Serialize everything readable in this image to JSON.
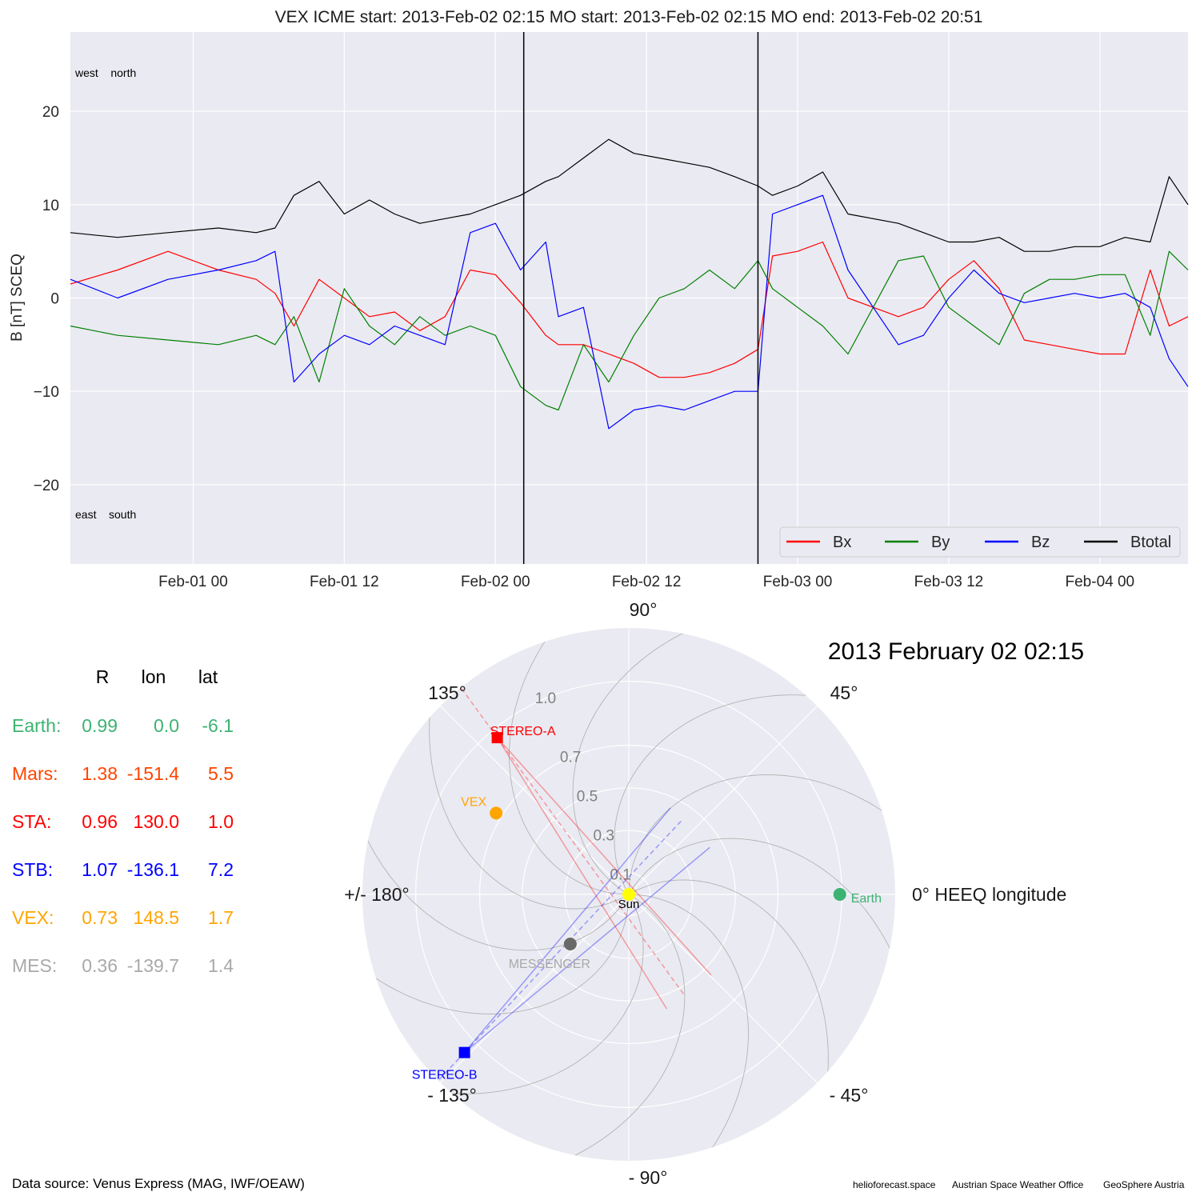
{
  "header": {
    "title": "VEX    ICME start: 2013-Feb-02 02:15   MO start: 2013-Feb-02 02:15   MO end: 2013-Feb-02 20:51"
  },
  "chart_data": [
    {
      "type": "line",
      "title": "VEX    ICME start: 2013-Feb-02 02:15   MO start: 2013-Feb-02 02:15   MO end: 2013-Feb-02 20:51",
      "ylabel": "B [nT] SCEQ",
      "xlabel": "",
      "x_range": [
        "2013-01-31T14:15",
        "2013-02-04T07:00"
      ],
      "ylim": [
        -28.5,
        28.5
      ],
      "yticks": [
        -20,
        -10,
        0,
        10,
        20
      ],
      "ytick_labels": [
        "−20",
        "−10",
        "0",
        "10",
        "20"
      ],
      "xticks": [
        "2013-02-01T00:00",
        "2013-02-01T12:00",
        "2013-02-02T00:00",
        "2013-02-02T12:00",
        "2013-02-03T00:00",
        "2013-02-03T12:00",
        "2013-02-04T00:00"
      ],
      "xtick_labels": [
        "Feb-01 00",
        "Feb-01 12",
        "Feb-02 00",
        "Feb-02 12",
        "Feb-03 00",
        "Feb-03 12",
        "Feb-04 00"
      ],
      "grid": true,
      "legend_position": "bottom-right",
      "corner_labels": {
        "top": "west    north",
        "bottom": "east    south"
      },
      "vertical_lines": [
        "2013-02-02T02:15",
        "2013-02-02T20:51"
      ],
      "colors": {
        "Bx": "#ff0000",
        "By": "#008000",
        "Bz": "#0000ff",
        "Btotal": "#000000"
      },
      "series": [
        {
          "name": "Bx",
          "points": [
            [
              "2013-01-31T14:15",
              1.5
            ],
            [
              "2013-01-31T18:00",
              3.0
            ],
            [
              "2013-01-31T22:00",
              5.0
            ],
            [
              "2013-02-01T02:00",
              3.0
            ],
            [
              "2013-02-01T05:00",
              2.0
            ],
            [
              "2013-02-01T06:30",
              0.5
            ],
            [
              "2013-02-01T08:00",
              -3.0
            ],
            [
              "2013-02-01T10:00",
              2.0
            ],
            [
              "2013-02-01T12:00",
              0.0
            ],
            [
              "2013-02-01T14:00",
              -2.0
            ],
            [
              "2013-02-01T16:00",
              -1.5
            ],
            [
              "2013-02-01T18:00",
              -3.5
            ],
            [
              "2013-02-01T20:00",
              -2.0
            ],
            [
              "2013-02-01T22:00",
              3.0
            ],
            [
              "2013-02-02T00:00",
              2.5
            ],
            [
              "2013-02-02T02:00",
              -0.5
            ],
            [
              "2013-02-02T04:00",
              -4.0
            ],
            [
              "2013-02-02T05:00",
              -5.0
            ],
            [
              "2013-02-02T07:00",
              -5.0
            ],
            [
              "2013-02-02T09:00",
              -6.0
            ],
            [
              "2013-02-02T11:00",
              -7.0
            ],
            [
              "2013-02-02T13:00",
              -8.5
            ],
            [
              "2013-02-02T15:00",
              -8.5
            ],
            [
              "2013-02-02T17:00",
              -8.0
            ],
            [
              "2013-02-02T19:00",
              -7.0
            ],
            [
              "2013-02-02T20:51",
              -5.5
            ],
            [
              "2013-02-02T22:00",
              4.5
            ],
            [
              "2013-02-03T00:00",
              5.0
            ],
            [
              "2013-02-03T02:00",
              6.0
            ],
            [
              "2013-02-03T04:00",
              0.0
            ],
            [
              "2013-02-03T08:00",
              -2.0
            ],
            [
              "2013-02-03T10:00",
              -1.0
            ],
            [
              "2013-02-03T12:00",
              2.0
            ],
            [
              "2013-02-03T14:00",
              4.0
            ],
            [
              "2013-02-03T16:00",
              1.0
            ],
            [
              "2013-02-03T18:00",
              -4.5
            ],
            [
              "2013-02-03T20:00",
              -5.0
            ],
            [
              "2013-02-03T22:00",
              -5.5
            ],
            [
              "2013-02-04T00:00",
              -6.0
            ],
            [
              "2013-02-04T02:00",
              -6.0
            ],
            [
              "2013-02-04T04:00",
              3.0
            ],
            [
              "2013-02-04T05:30",
              -3.0
            ],
            [
              "2013-02-04T07:00",
              -2.0
            ]
          ]
        },
        {
          "name": "By",
          "points": [
            [
              "2013-01-31T14:15",
              -3.0
            ],
            [
              "2013-01-31T18:00",
              -4.0
            ],
            [
              "2013-01-31T22:00",
              -4.5
            ],
            [
              "2013-02-01T02:00",
              -5.0
            ],
            [
              "2013-02-01T05:00",
              -4.0
            ],
            [
              "2013-02-01T06:30",
              -5.0
            ],
            [
              "2013-02-01T08:00",
              -2.0
            ],
            [
              "2013-02-01T10:00",
              -9.0
            ],
            [
              "2013-02-01T12:00",
              1.0
            ],
            [
              "2013-02-01T14:00",
              -3.0
            ],
            [
              "2013-02-01T16:00",
              -5.0
            ],
            [
              "2013-02-01T18:00",
              -2.0
            ],
            [
              "2013-02-01T20:00",
              -4.0
            ],
            [
              "2013-02-01T22:00",
              -3.0
            ],
            [
              "2013-02-02T00:00",
              -4.0
            ],
            [
              "2013-02-02T02:00",
              -9.5
            ],
            [
              "2013-02-02T04:00",
              -11.5
            ],
            [
              "2013-02-02T05:00",
              -12.0
            ],
            [
              "2013-02-02T07:00",
              -5.0
            ],
            [
              "2013-02-02T09:00",
              -9.0
            ],
            [
              "2013-02-02T11:00",
              -4.0
            ],
            [
              "2013-02-02T13:00",
              0.0
            ],
            [
              "2013-02-02T15:00",
              1.0
            ],
            [
              "2013-02-02T17:00",
              3.0
            ],
            [
              "2013-02-02T19:00",
              1.0
            ],
            [
              "2013-02-02T20:51",
              4.0
            ],
            [
              "2013-02-02T22:00",
              1.0
            ],
            [
              "2013-02-03T00:00",
              -1.0
            ],
            [
              "2013-02-03T02:00",
              -3.0
            ],
            [
              "2013-02-03T04:00",
              -6.0
            ],
            [
              "2013-02-03T08:00",
              4.0
            ],
            [
              "2013-02-03T10:00",
              4.5
            ],
            [
              "2013-02-03T12:00",
              -1.0
            ],
            [
              "2013-02-03T14:00",
              -3.0
            ],
            [
              "2013-02-03T16:00",
              -5.0
            ],
            [
              "2013-02-03T18:00",
              0.5
            ],
            [
              "2013-02-03T20:00",
              2.0
            ],
            [
              "2013-02-03T22:00",
              2.0
            ],
            [
              "2013-02-04T00:00",
              2.5
            ],
            [
              "2013-02-04T02:00",
              2.5
            ],
            [
              "2013-02-04T04:00",
              -4.0
            ],
            [
              "2013-02-04T05:30",
              5.0
            ],
            [
              "2013-02-04T07:00",
              3.0
            ]
          ]
        },
        {
          "name": "Bz",
          "points": [
            [
              "2013-01-31T14:15",
              2.0
            ],
            [
              "2013-01-31T18:00",
              0.0
            ],
            [
              "2013-01-31T22:00",
              2.0
            ],
            [
              "2013-02-01T02:00",
              3.0
            ],
            [
              "2013-02-01T05:00",
              4.0
            ],
            [
              "2013-02-01T06:30",
              5.0
            ],
            [
              "2013-02-01T08:00",
              -9.0
            ],
            [
              "2013-02-01T10:00",
              -6.0
            ],
            [
              "2013-02-01T12:00",
              -4.0
            ],
            [
              "2013-02-01T14:00",
              -5.0
            ],
            [
              "2013-02-01T16:00",
              -3.0
            ],
            [
              "2013-02-01T18:00",
              -4.0
            ],
            [
              "2013-02-01T20:00",
              -5.0
            ],
            [
              "2013-02-01T22:00",
              7.0
            ],
            [
              "2013-02-02T00:00",
              8.0
            ],
            [
              "2013-02-02T02:00",
              3.0
            ],
            [
              "2013-02-02T04:00",
              6.0
            ],
            [
              "2013-02-02T05:00",
              -2.0
            ],
            [
              "2013-02-02T07:00",
              -1.0
            ],
            [
              "2013-02-02T09:00",
              -14.0
            ],
            [
              "2013-02-02T11:00",
              -12.0
            ],
            [
              "2013-02-02T13:00",
              -11.5
            ],
            [
              "2013-02-02T15:00",
              -12.0
            ],
            [
              "2013-02-02T17:00",
              -11.0
            ],
            [
              "2013-02-02T19:00",
              -10.0
            ],
            [
              "2013-02-02T20:51",
              -10.0
            ],
            [
              "2013-02-02T22:00",
              9.0
            ],
            [
              "2013-02-03T00:00",
              10.0
            ],
            [
              "2013-02-03T02:00",
              11.0
            ],
            [
              "2013-02-03T04:00",
              3.0
            ],
            [
              "2013-02-03T08:00",
              -5.0
            ],
            [
              "2013-02-03T10:00",
              -4.0
            ],
            [
              "2013-02-03T12:00",
              0.0
            ],
            [
              "2013-02-03T14:00",
              3.0
            ],
            [
              "2013-02-03T16:00",
              0.5
            ],
            [
              "2013-02-03T18:00",
              -0.5
            ],
            [
              "2013-02-03T20:00",
              0.0
            ],
            [
              "2013-02-03T22:00",
              0.5
            ],
            [
              "2013-02-04T00:00",
              0.0
            ],
            [
              "2013-02-04T02:00",
              0.5
            ],
            [
              "2013-02-04T04:00",
              -1.0
            ],
            [
              "2013-02-04T05:30",
              -6.5
            ],
            [
              "2013-02-04T07:00",
              -9.5
            ]
          ]
        },
        {
          "name": "Btotal",
          "points": [
            [
              "2013-01-31T14:15",
              7.0
            ],
            [
              "2013-01-31T18:00",
              6.5
            ],
            [
              "2013-01-31T22:00",
              7.0
            ],
            [
              "2013-02-01T02:00",
              7.5
            ],
            [
              "2013-02-01T05:00",
              7.0
            ],
            [
              "2013-02-01T06:30",
              7.5
            ],
            [
              "2013-02-01T08:00",
              11.0
            ],
            [
              "2013-02-01T10:00",
              12.5
            ],
            [
              "2013-02-01T12:00",
              9.0
            ],
            [
              "2013-02-01T14:00",
              10.5
            ],
            [
              "2013-02-01T16:00",
              9.0
            ],
            [
              "2013-02-01T18:00",
              8.0
            ],
            [
              "2013-02-01T20:00",
              8.5
            ],
            [
              "2013-02-01T22:00",
              9.0
            ],
            [
              "2013-02-02T00:00",
              10.0
            ],
            [
              "2013-02-02T02:00",
              11.0
            ],
            [
              "2013-02-02T04:00",
              12.5
            ],
            [
              "2013-02-02T05:00",
              13.0
            ],
            [
              "2013-02-02T07:00",
              15.0
            ],
            [
              "2013-02-02T09:00",
              17.0
            ],
            [
              "2013-02-02T11:00",
              15.5
            ],
            [
              "2013-02-02T13:00",
              15.0
            ],
            [
              "2013-02-02T15:00",
              14.5
            ],
            [
              "2013-02-02T17:00",
              14.0
            ],
            [
              "2013-02-02T19:00",
              13.0
            ],
            [
              "2013-02-02T20:51",
              12.0
            ],
            [
              "2013-02-02T22:00",
              11.0
            ],
            [
              "2013-02-03T00:00",
              12.0
            ],
            [
              "2013-02-03T02:00",
              13.5
            ],
            [
              "2013-02-03T04:00",
              9.0
            ],
            [
              "2013-02-03T08:00",
              8.0
            ],
            [
              "2013-02-03T10:00",
              7.0
            ],
            [
              "2013-02-03T12:00",
              6.0
            ],
            [
              "2013-02-03T14:00",
              6.0
            ],
            [
              "2013-02-03T16:00",
              6.5
            ],
            [
              "2013-02-03T18:00",
              5.0
            ],
            [
              "2013-02-03T20:00",
              5.0
            ],
            [
              "2013-02-03T22:00",
              5.5
            ],
            [
              "2013-02-04T00:00",
              5.5
            ],
            [
              "2013-02-04T02:00",
              6.5
            ],
            [
              "2013-02-04T04:00",
              6.0
            ],
            [
              "2013-02-04T05:30",
              13.0
            ],
            [
              "2013-02-04T07:00",
              10.0
            ]
          ]
        }
      ]
    },
    {
      "type": "scatter",
      "polar": true,
      "title": "2013 February 02  02:15",
      "theta_labels": {
        "0": "0° HEEQ longitude",
        "45": "45°",
        "90": "90°",
        "135": "135°",
        "180": "+/- 180°",
        "-135": "- 135°",
        "-90": "- 90°",
        "-45": "- 45°"
      },
      "r_ticks": [
        0.1,
        0.3,
        0.5,
        0.7,
        1.0
      ],
      "r_tick_labels": [
        "0.1",
        "0.3",
        "0.5",
        "0.7",
        "1.0"
      ],
      "rmax": 1.25,
      "grid": true,
      "bodies": [
        {
          "name": "Sun",
          "r": 0.0,
          "lon": 0.0,
          "color": "#ffff00",
          "marker": "circle"
        },
        {
          "name": "Earth",
          "r": 0.99,
          "lon": 0.0,
          "color": "#3cb371",
          "marker": "circle"
        },
        {
          "name": "STEREO-A",
          "r": 0.96,
          "lon": 130.0,
          "color": "#ff0000",
          "marker": "square"
        },
        {
          "name": "STEREO-B",
          "r": 1.07,
          "lon": -136.1,
          "color": "#0000ff",
          "marker": "square"
        },
        {
          "name": "VEX",
          "r": 0.73,
          "lon": 148.5,
          "color": "#ffa500",
          "marker": "circle"
        },
        {
          "name": "MESSENGER",
          "r": 0.36,
          "lon": -139.7,
          "color": "#696969",
          "marker": "circle"
        }
      ]
    }
  ],
  "positions_table": {
    "headers": [
      "R",
      "lon",
      "lat"
    ],
    "rows": [
      {
        "label": "Earth:",
        "r": "0.99",
        "lon": "0.0",
        "lat": "-6.1",
        "color": "#3cb371"
      },
      {
        "label": "Mars:",
        "r": "1.38",
        "lon": "-151.4",
        "lat": "5.5",
        "color": "#ff4500"
      },
      {
        "label": "STA:",
        "r": "0.96",
        "lon": "130.0",
        "lat": "1.0",
        "color": "#ff0000"
      },
      {
        "label": "STB:",
        "r": "1.07",
        "lon": "-136.1",
        "lat": "7.2",
        "color": "#0000ff"
      },
      {
        "label": "VEX:",
        "r": "0.73",
        "lon": "148.5",
        "lat": "1.7",
        "color": "#ffa500"
      },
      {
        "label": "MES:",
        "r": "0.36",
        "lon": "-139.7",
        "lat": "1.4",
        "color": "#a9a9a9"
      }
    ]
  },
  "footer": {
    "source": "Data source: Venus Express (MAG, IWF/OEAW)",
    "credits": [
      "helioforecast.space",
      "Austrian Space Weather Office",
      "GeoSphere Austria"
    ]
  }
}
